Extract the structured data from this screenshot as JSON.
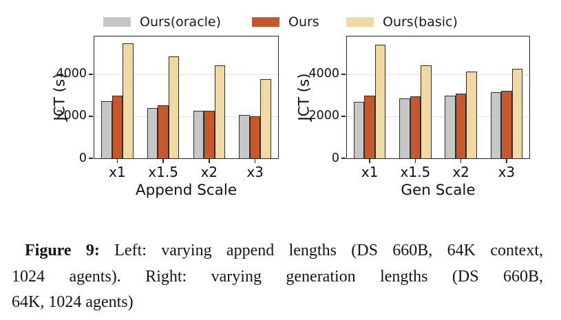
{
  "legend": {
    "items": [
      {
        "name": "ours-oracle",
        "label": "Ours(oracle)",
        "color": "#c7c7c7"
      },
      {
        "name": "ours",
        "label": "Ours",
        "color": "#c6582e"
      },
      {
        "name": "ours-basic",
        "label": "Ours(basic)",
        "color": "#f1d9a4"
      }
    ]
  },
  "chart_data": [
    {
      "type": "bar",
      "title": "",
      "xlabel": "Append Scale",
      "ylabel": "JCT (s)",
      "categories": [
        "x1",
        "x1.5",
        "x2",
        "x3"
      ],
      "series": [
        {
          "name": "Ours(oracle)",
          "color": "#c7c7c7",
          "values": [
            2700,
            2390,
            2260,
            2050
          ]
        },
        {
          "name": "Ours",
          "color": "#c6582e",
          "values": [
            2980,
            2500,
            2230,
            1980
          ]
        },
        {
          "name": "Ours(basic)",
          "color": "#f1d9a4",
          "values": [
            5450,
            4840,
            4410,
            3760
          ]
        }
      ],
      "ylim": [
        0,
        5800
      ],
      "yticks": [
        0,
        2000,
        4000
      ],
      "grid_values": [
        2000,
        4000
      ],
      "grid_style": "dotted",
      "bar_edge_color": "#2d2d2d",
      "legend_position": "above"
    },
    {
      "type": "bar",
      "title": "",
      "xlabel": "Gen Scale",
      "ylabel": "JCT (s)",
      "categories": [
        "x1",
        "x1.5",
        "x2",
        "x3"
      ],
      "series": [
        {
          "name": "Ours(oracle)",
          "color": "#c7c7c7",
          "values": [
            2680,
            2840,
            2980,
            3140
          ]
        },
        {
          "name": "Ours",
          "color": "#c6582e",
          "values": [
            2980,
            2930,
            3050,
            3180
          ]
        },
        {
          "name": "Ours(basic)",
          "color": "#f1d9a4",
          "values": [
            5390,
            4420,
            4120,
            4230
          ]
        }
      ],
      "ylim": [
        0,
        5800
      ],
      "yticks": [
        0,
        2000,
        4000
      ],
      "grid_values": [
        2000,
        4000
      ],
      "grid_style": "dotted",
      "bar_edge_color": "#2d2d2d",
      "legend_position": "above"
    }
  ],
  "caption": {
    "prefix": "Figure 9:",
    "line1_rest": " Left: varying append lengths (DS 660B, 64K context,",
    "line2": "1024 agents). Right: varying generation lengths (DS 660B,",
    "line3": "64K, 1024 agents)"
  }
}
